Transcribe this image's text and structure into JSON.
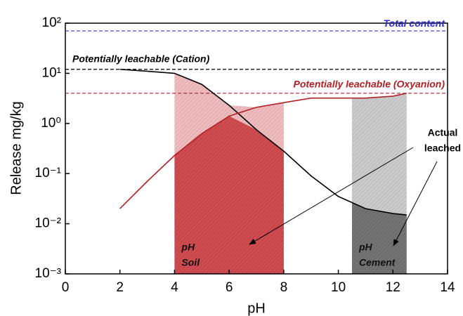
{
  "chart_data": {
    "type": "line",
    "y_scale": "log",
    "x_label": "pH",
    "y_label": "Release mg/kg",
    "xlim": [
      0,
      14
    ],
    "xticks": [
      0,
      2,
      4,
      6,
      8,
      10,
      12,
      14
    ],
    "ylim": [
      0.001,
      100
    ],
    "yticks": [
      {
        "value": 0.001,
        "label": "10⁻³"
      },
      {
        "value": 0.01,
        "label": "10⁻²"
      },
      {
        "value": 0.1,
        "label": "10⁻¹"
      },
      {
        "value": 1,
        "label": "10⁰"
      },
      {
        "value": 10,
        "label": "10¹"
      },
      {
        "value": 100,
        "label": "10²"
      }
    ],
    "series": [
      {
        "name": "Cation",
        "color": "#000000",
        "x": [
          2,
          3,
          4,
          5,
          6,
          7,
          8,
          9,
          10,
          11,
          12,
          12.5
        ],
        "values": [
          12,
          11,
          10,
          6,
          2.3,
          0.75,
          0.28,
          0.09,
          0.035,
          0.02,
          0.016,
          0.015
        ]
      },
      {
        "name": "Oxyanion",
        "color": "#b22025",
        "x": [
          2,
          3,
          4,
          5,
          6,
          7,
          8,
          9,
          10,
          11,
          12,
          12.5
        ],
        "values": [
          0.02,
          0.07,
          0.23,
          0.63,
          1.4,
          2.1,
          2.6,
          3.2,
          3.2,
          3.2,
          3.5,
          4
        ]
      }
    ],
    "reference_lines": [
      {
        "label": "Total content",
        "value": 70,
        "color": "#2a2ad0"
      },
      {
        "label": "Potentially leachable (Cation)",
        "value": 12,
        "color": "#000000"
      },
      {
        "label": "Potentially leachable (Oxyanion)",
        "value": 4,
        "color": "#b22025"
      }
    ],
    "ranges": [
      {
        "x": [
          4,
          8
        ],
        "label": [
          "pH",
          "Soil"
        ],
        "color": "#c1272d"
      },
      {
        "x": [
          10.5,
          12.5
        ],
        "label": [
          "pH",
          "Cement"
        ],
        "color": "#555555"
      }
    ],
    "annotation": [
      "Actual",
      "leached"
    ]
  }
}
